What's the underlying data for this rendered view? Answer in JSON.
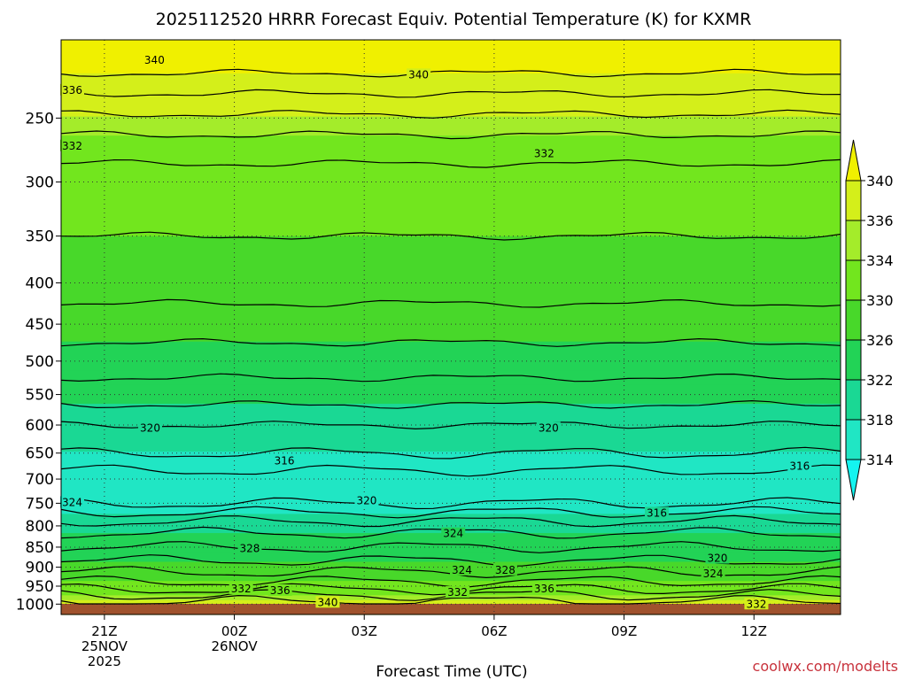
{
  "chart_data": {
    "type": "heatmap",
    "title": "2025112520 HRRR Forecast Equiv. Potential Temperature (K) for KXMR",
    "xlabel": "Forecast Time (UTC)",
    "ylabel": "",
    "y_scale": "log-pressure",
    "y_inverted": true,
    "ylim": [
      1030,
      200
    ],
    "xlim": [
      20.0,
      38.0
    ],
    "y_ticks": [
      250,
      300,
      350,
      400,
      450,
      500,
      550,
      600,
      650,
      700,
      750,
      800,
      850,
      900,
      950,
      1000
    ],
    "x_ticks": [
      {
        "hour": 21,
        "lines": [
          "21Z",
          "25NOV",
          "2025"
        ]
      },
      {
        "hour": 24,
        "lines": [
          "00Z",
          "26NOV"
        ]
      },
      {
        "hour": 27,
        "lines": [
          "03Z"
        ]
      },
      {
        "hour": 30,
        "lines": [
          "06Z"
        ]
      },
      {
        "hour": 33,
        "lines": [
          "09Z"
        ]
      },
      {
        "hour": 36,
        "lines": [
          "12Z"
        ]
      }
    ],
    "grid": true,
    "levels": [
      {
        "p": 200,
        "theta": 342
      },
      {
        "p": 220,
        "theta": 340
      },
      {
        "p": 240,
        "theta": 337
      },
      {
        "p": 270,
        "theta": 333
      },
      {
        "p": 300,
        "theta": 331
      },
      {
        "p": 350,
        "theta": 330
      },
      {
        "p": 400,
        "theta": 329
      },
      {
        "p": 450,
        "theta": 327
      },
      {
        "p": 500,
        "theta": 325
      },
      {
        "p": 550,
        "theta": 323
      },
      {
        "p": 600,
        "theta": 320
      },
      {
        "p": 650,
        "theta": 318
      },
      {
        "p": 700,
        "theta": 315
      },
      {
        "p": 750,
        "theta": 316
      },
      {
        "p": 800,
        "theta": 321
      },
      {
        "p": 850,
        "theta": 324
      },
      {
        "p": 900,
        "theta": 327
      },
      {
        "p": 950,
        "theta": 331
      },
      {
        "p": 1000,
        "theta": 337
      }
    ],
    "contour_interval": 2,
    "contour_labels": [
      {
        "text": "340",
        "x": 21.9,
        "p": 213
      },
      {
        "text": "340",
        "x": 28.0,
        "p": 222
      },
      {
        "text": "336",
        "x": 20.0,
        "p": 232
      },
      {
        "text": "332",
        "x": 20.0,
        "p": 272
      },
      {
        "text": "332",
        "x": 30.9,
        "p": 278
      },
      {
        "text": "320",
        "x": 21.8,
        "p": 608
      },
      {
        "text": "320",
        "x": 31.0,
        "p": 608
      },
      {
        "text": "316",
        "x": 24.9,
        "p": 668
      },
      {
        "text": "316",
        "x": 36.8,
        "p": 678
      },
      {
        "text": "320",
        "x": 26.8,
        "p": 748
      },
      {
        "text": "324",
        "x": 20.0,
        "p": 752
      },
      {
        "text": "316",
        "x": 33.5,
        "p": 775
      },
      {
        "text": "324",
        "x": 28.8,
        "p": 822
      },
      {
        "text": "328",
        "x": 24.1,
        "p": 858
      },
      {
        "text": "320",
        "x": 34.9,
        "p": 882
      },
      {
        "text": "324",
        "x": 29.0,
        "p": 912
      },
      {
        "text": "328",
        "x": 30.0,
        "p": 912
      },
      {
        "text": "324",
        "x": 34.8,
        "p": 922
      },
      {
        "text": "332",
        "x": 23.9,
        "p": 962
      },
      {
        "text": "336",
        "x": 24.8,
        "p": 967
      },
      {
        "text": "336",
        "x": 30.9,
        "p": 962
      },
      {
        "text": "332",
        "x": 28.9,
        "p": 972
      },
      {
        "text": "340",
        "x": 25.9,
        "p": 1000
      },
      {
        "text": "332",
        "x": 35.8,
        "p": 1005
      }
    ],
    "colorbar": {
      "labels": [
        "340",
        "336",
        "334",
        "330",
        "326",
        "322",
        "318",
        "314"
      ],
      "bins": [
        {
          "min": 340,
          "color": "#f0f000"
        },
        {
          "min": 336,
          "color": "#d4ef1a"
        },
        {
          "min": 334,
          "color": "#a4ec2a"
        },
        {
          "min": 330,
          "color": "#72e61e"
        },
        {
          "min": 326,
          "color": "#48d82a"
        },
        {
          "min": 322,
          "color": "#22d356"
        },
        {
          "min": 318,
          "color": "#1ad894"
        },
        {
          "min": 314,
          "color": "#20e6c4"
        },
        {
          "min": 0,
          "color": "#14f4f0"
        }
      ],
      "above_color": "#f0f000",
      "below_color": "#14f4f0"
    },
    "ground_color": "#a0522d"
  },
  "credit": "coolwx.com/modelts"
}
